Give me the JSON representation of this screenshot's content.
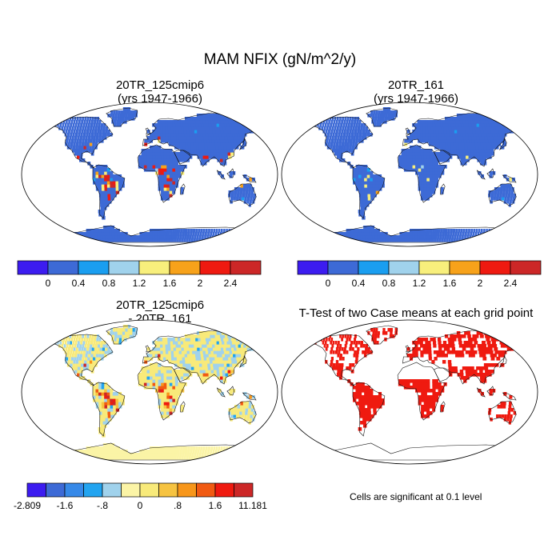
{
  "main_title": "MAM NFIX (gN/m^2/y)",
  "panels": [
    {
      "id": "p1",
      "title_line1": "20TR_125cmip6",
      "title_line2": "(yrs 1947-1966)"
    },
    {
      "id": "p2",
      "title_line1": "20TR_161",
      "title_line2": "(yrs 1947-1966)"
    },
    {
      "id": "p3",
      "title_line1": "20TR_125cmip6",
      "title_line2": "- 20TR_161"
    },
    {
      "id": "p4",
      "title_line1": "T-Test of two Case means at each grid point",
      "title_line2": ""
    }
  ],
  "colorbar_top": {
    "colors": [
      "#3c1cf0",
      "#3d6ad6",
      "#1a9ef0",
      "#a0d2ec",
      "#f8ef7c",
      "#f7a21a",
      "#ef1a10",
      "#cc2727"
    ],
    "labels": [
      "0",
      "0.4",
      "0.8",
      "1.2",
      "1.6",
      "2",
      "2.4"
    ]
  },
  "colorbar_diff": {
    "colors": [
      "#3c1cf0",
      "#3d6ad6",
      "#3689e8",
      "#22a4f0",
      "#a0d2ec",
      "#fbf4a6",
      "#f8ea7a",
      "#f6c341",
      "#f7961a",
      "#f15a12",
      "#ef1a10",
      "#cc2727"
    ],
    "labels": [
      "-2.809",
      "-1.6",
      "-.8",
      "0",
      ".8",
      "1.6",
      "11.181"
    ]
  },
  "significance_note": "Cells are significant at 0.1 level",
  "map_styles": {
    "mean_land_base": "#3d6ad6",
    "diff_land_base": "#f8ef7c",
    "significant_color": "#ef1a10",
    "ocean": "#ffffff",
    "projection": "Robinson"
  }
}
